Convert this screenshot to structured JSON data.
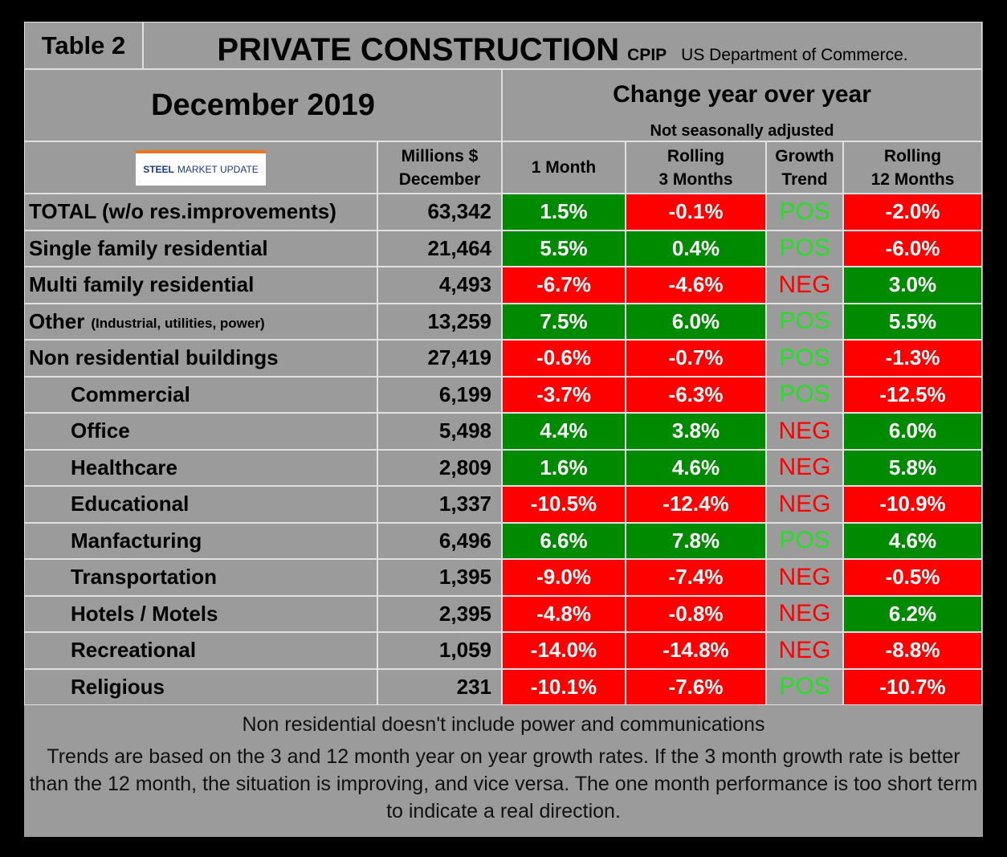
{
  "header": {
    "table_label": "Table 2",
    "title": "PRIVATE CONSTRUCTION",
    "title_suffix": "CPIP",
    "source": "US Department of Commerce.",
    "period": "December 2019",
    "change_title": "Change year over year",
    "change_subtitle": "Not seasonally adjusted",
    "logo": {
      "left": "STEEL",
      "right": "MARKET UPDATE"
    }
  },
  "columns": [
    [
      "Millions $",
      "December"
    ],
    [
      "1 Month"
    ],
    [
      "Rolling",
      "3 Months"
    ],
    [
      "Growth",
      "Trend"
    ],
    [
      "Rolling",
      "12 Months"
    ]
  ],
  "rows": [
    {
      "label": "TOTAL (w/o res.improvements)",
      "value": "63,342",
      "m1": "1.5%",
      "m3": "-0.1%",
      "trend": {
        "text": "POS",
        "color": "#22e022"
      },
      "m12": "-2.0%"
    },
    {
      "label": "Single family residential",
      "value": "21,464",
      "m1": "5.5%",
      "m3": "0.4%",
      "trend": {
        "text": "POS",
        "color": "#22e022"
      },
      "m12": "-6.0%"
    },
    {
      "label": "Multi family residential",
      "value": "4,493",
      "m1": "-6.7%",
      "m3": "-4.6%",
      "trend": {
        "text": "NEG",
        "color": "#ff0000"
      },
      "m12": "3.0%"
    },
    {
      "label": "Other",
      "note": "(Industrial, utilities, power)",
      "value": "13,259",
      "m1": "7.5%",
      "m3": "6.0%",
      "trend": {
        "text": "POS",
        "color": "#22e022"
      },
      "m12": "5.5%"
    },
    {
      "label": "Non residential buildings",
      "value": "27,419",
      "m1": "-0.6%",
      "m3": "-0.7%",
      "trend": {
        "text": "POS",
        "color": "#22e022"
      },
      "m12": "-1.3%"
    },
    {
      "label": "Commercial",
      "value": "6,199",
      "m1": "-3.7%",
      "m3": "-6.3%",
      "trend": {
        "text": "POS",
        "color": "#22e022"
      },
      "m12": "-12.5%"
    },
    {
      "label": "Office",
      "value": "5,498",
      "m1": "4.4%",
      "m3": "3.8%",
      "trend": {
        "text": "NEG",
        "color": "#ff0000"
      },
      "m12": "6.0%"
    },
    {
      "label": "Healthcare",
      "value": "2,809",
      "m1": "1.6%",
      "m3": "4.6%",
      "trend": {
        "text": "NEG",
        "color": "#ff0000"
      },
      "m12": "5.8%"
    },
    {
      "label": "Educational",
      "value": "1,337",
      "m1": "-10.5%",
      "m3": "-12.4%",
      "trend": {
        "text": "NEG",
        "color": "#ff0000"
      },
      "m12": "-10.9%"
    },
    {
      "label": "Manfacturing",
      "value": "6,496",
      "m1": "6.6%",
      "m3": "7.8%",
      "trend": {
        "text": "POS",
        "color": "#22e022"
      },
      "m12": "4.6%"
    },
    {
      "label": "Transportation",
      "value": "1,395",
      "m1": "-9.0%",
      "m3": "-7.4%",
      "trend": {
        "text": "NEG",
        "color": "#ff0000"
      },
      "m12": "-0.5%"
    },
    {
      "label": "Hotels / Motels",
      "value": "2,395",
      "m1": "-4.8%",
      "m3": "-0.8%",
      "trend": {
        "text": "NEG",
        "color": "#ff0000"
      },
      "m12": "6.2%"
    },
    {
      "label": "Recreational",
      "value": "1,059",
      "m1": "-14.0%",
      "m3": "-14.8%",
      "trend": {
        "text": "NEG",
        "color": "#ff0000"
      },
      "m12": "-8.8%"
    },
    {
      "label": "Religious",
      "value": "231",
      "m1": "-10.1%",
      "m3": "-7.6%",
      "trend": {
        "text": "POS",
        "color": "#22e022"
      },
      "m12": "-10.7%"
    }
  ],
  "footer": {
    "note": "Non residential doesn't include power and communications",
    "explanation": "Trends are based on the 3 and 12 month year on year growth rates. If the 3 month growth rate is better than the 12 month, the situation is improving, and vice versa. The one month performance is too short term to indicate a real direction."
  }
}
